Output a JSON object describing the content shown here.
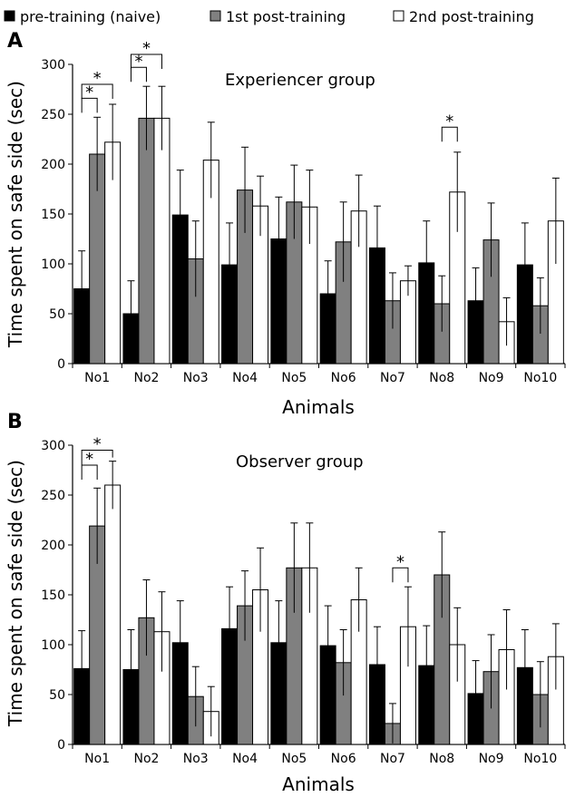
{
  "legend": {
    "items": [
      {
        "label": "pre-training (naive)",
        "color": "#000000"
      },
      {
        "label": "1st post-training",
        "color": "#808080"
      },
      {
        "label": "2nd post-training",
        "color": "#ffffff"
      }
    ]
  },
  "panels": [
    {
      "letter": "A",
      "group_title": "Experiencer group"
    },
    {
      "letter": "B",
      "group_title": "Observer group"
    }
  ],
  "chart_data": [
    {
      "type": "bar",
      "title": "Experiencer group",
      "panel": "A",
      "xlabel": "Animals",
      "ylabel": "Time spent on safe side (sec)",
      "ylim": [
        0,
        300
      ],
      "yticks": [
        0,
        50,
        100,
        150,
        200,
        250,
        300
      ],
      "categories": [
        "No1",
        "No2",
        "No3",
        "No4",
        "No5",
        "No6",
        "No7",
        "No8",
        "No9",
        "No10"
      ],
      "series": [
        {
          "name": "pre-training (naive)",
          "color": "#000000",
          "values": [
            75,
            50,
            149,
            99,
            125,
            70,
            116,
            101,
            63,
            99
          ],
          "errors": [
            38,
            33,
            45,
            42,
            42,
            33,
            42,
            42,
            33,
            42
          ]
        },
        {
          "name": "1st post-training",
          "color": "#808080",
          "values": [
            210,
            246,
            105,
            174,
            162,
            122,
            63,
            60,
            124,
            58
          ],
          "errors": [
            37,
            32,
            38,
            43,
            37,
            40,
            28,
            28,
            37,
            28
          ]
        },
        {
          "name": "2nd post-training",
          "color": "#ffffff",
          "values": [
            222,
            246,
            204,
            158,
            157,
            153,
            83,
            172,
            42,
            143
          ],
          "errors": [
            38,
            32,
            38,
            30,
            37,
            36,
            15,
            40,
            24,
            43
          ]
        }
      ],
      "significance": [
        {
          "category": "No1",
          "from": 0,
          "to": 1,
          "top": 266,
          "label": "*"
        },
        {
          "category": "No1",
          "from": 0,
          "to": 2,
          "top": 280,
          "label": "*"
        },
        {
          "category": "No2",
          "from": 0,
          "to": 1,
          "top": 297,
          "label": "*"
        },
        {
          "category": "No2",
          "from": 0,
          "to": 2,
          "top": 310,
          "label": "*"
        },
        {
          "category": "No8",
          "from": 1,
          "to": 2,
          "top": 237,
          "label": "*"
        }
      ]
    },
    {
      "type": "bar",
      "title": "Observer group",
      "panel": "B",
      "xlabel": "Animals",
      "ylabel": "Time spent on safe side (sec)",
      "ylim": [
        0,
        300
      ],
      "yticks": [
        0,
        50,
        100,
        150,
        200,
        250,
        300
      ],
      "categories": [
        "No1",
        "No2",
        "No3",
        "No4",
        "No5",
        "No6",
        "No7",
        "No8",
        "No9",
        "No10"
      ],
      "series": [
        {
          "name": "pre-training (naive)",
          "color": "#000000",
          "values": [
            76,
            75,
            102,
            116,
            102,
            99,
            80,
            79,
            51,
            77
          ],
          "errors": [
            38,
            40,
            42,
            42,
            42,
            40,
            38,
            40,
            33,
            38
          ]
        },
        {
          "name": "1st post-training",
          "color": "#808080",
          "values": [
            219,
            127,
            48,
            139,
            177,
            82,
            21,
            170,
            73,
            50
          ],
          "errors": [
            38,
            38,
            30,
            35,
            45,
            33,
            20,
            43,
            37,
            33
          ]
        },
        {
          "name": "2nd post-training",
          "color": "#ffffff",
          "values": [
            260,
            113,
            33,
            155,
            177,
            145,
            118,
            100,
            95,
            88
          ],
          "errors": [
            24,
            40,
            25,
            42,
            45,
            32,
            40,
            37,
            40,
            33
          ]
        }
      ],
      "significance": [
        {
          "category": "No1",
          "from": 0,
          "to": 1,
          "top": 280,
          "label": "*"
        },
        {
          "category": "No1",
          "from": 0,
          "to": 2,
          "top": 295,
          "label": "*"
        },
        {
          "category": "No7",
          "from": 1,
          "to": 2,
          "top": 177,
          "label": "*"
        }
      ]
    }
  ]
}
